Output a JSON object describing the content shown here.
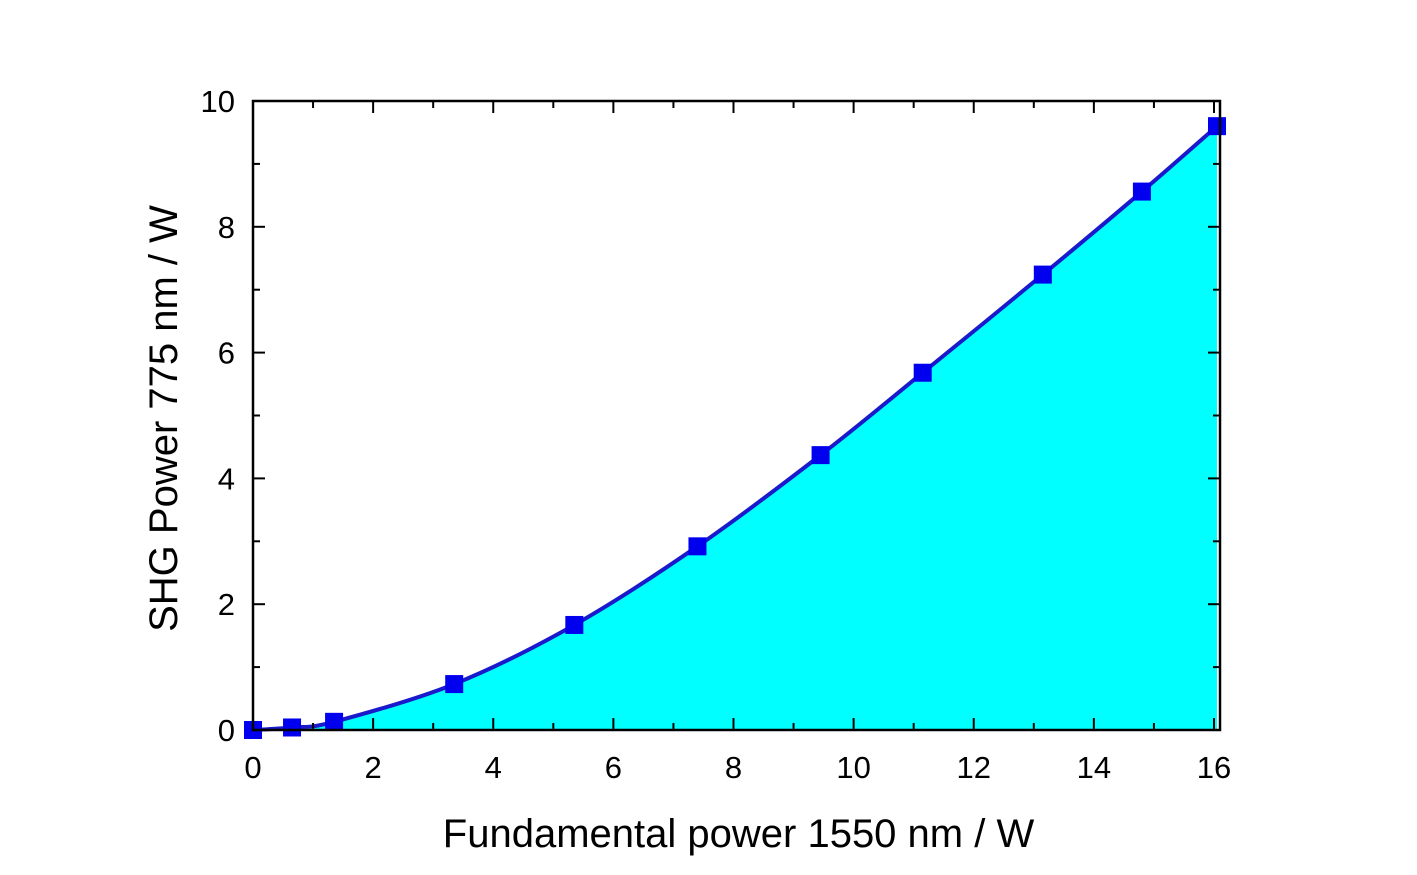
{
  "chart_data": {
    "type": "area",
    "title": "",
    "xlabel": "Fundamental power 1550 nm / W",
    "ylabel": "SHG Power 775 nm / W",
    "xlim": [
      0,
      16.1
    ],
    "ylim": [
      0,
      10
    ],
    "x_ticks": [
      0,
      2,
      4,
      6,
      8,
      10,
      12,
      14,
      16
    ],
    "y_ticks": [
      0,
      2,
      4,
      6,
      8,
      10
    ],
    "grid": false,
    "legend": "none",
    "fill_color": "#00FFFF",
    "line_color": "#1A1ACC",
    "marker_color": "#0000EE",
    "series": [
      {
        "marker": "square",
        "x": [
          0.0,
          0.65,
          1.35,
          3.35,
          5.35,
          7.4,
          9.45,
          11.15,
          13.15,
          14.8,
          16.05
        ],
        "y": [
          0.0,
          0.04,
          0.13,
          0.73,
          1.67,
          2.92,
          4.37,
          5.68,
          7.24,
          8.56,
          9.6
        ]
      }
    ]
  }
}
